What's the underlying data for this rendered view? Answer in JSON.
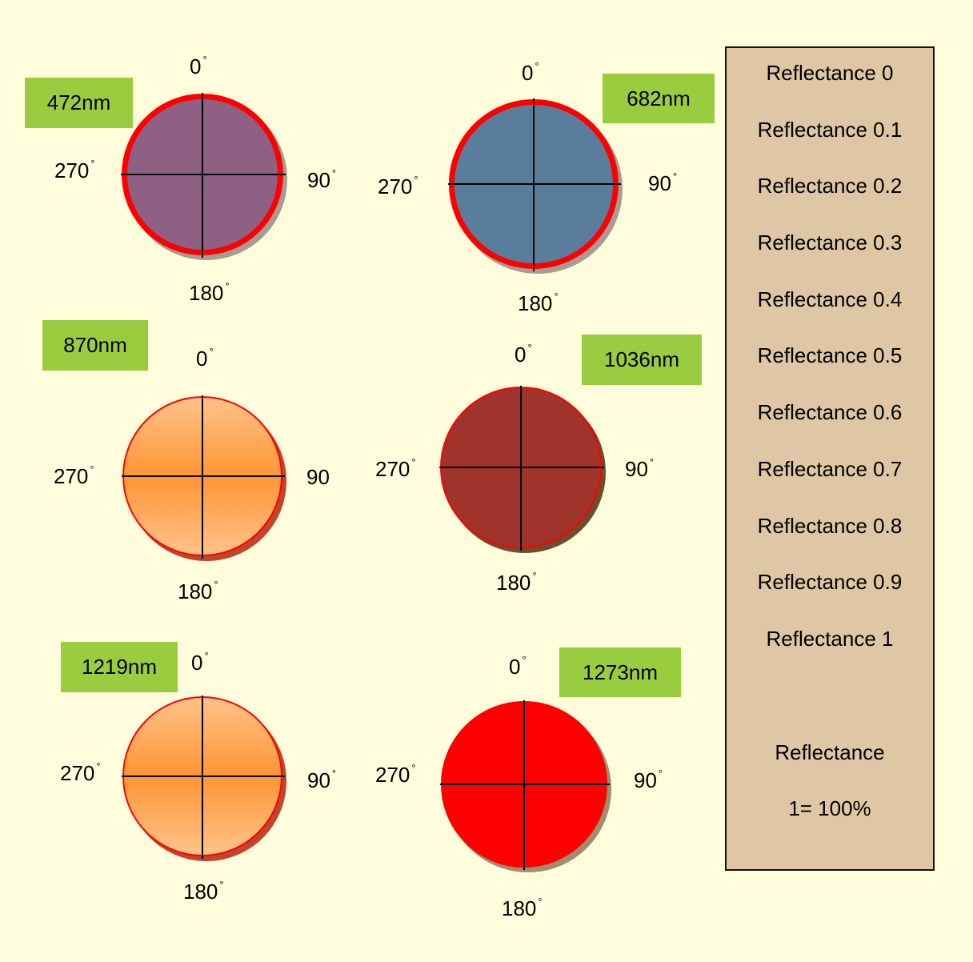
{
  "panels": [
    {
      "name": "472nm",
      "label": "472nm",
      "fill": "#8e6184",
      "rim": "#ff0000",
      "angles": {
        "top": "0",
        "right": "90",
        "bottom": "180",
        "left": "270"
      }
    },
    {
      "name": "682nm",
      "label": "682nm",
      "fill": "#5b7d9c",
      "rim": "#ff0000",
      "angles": {
        "top": "0",
        "right": "90",
        "bottom": "180",
        "left": "270"
      }
    },
    {
      "name": "870nm",
      "label": "870nm",
      "fill": "#fe9534",
      "rim": "#ff0000",
      "angles": {
        "top": "0",
        "right": "90",
        "bottom": "180",
        "left": "270"
      }
    },
    {
      "name": "1036nm",
      "label": "1036nm",
      "fill": "#a0332b",
      "rim": "#ff0000",
      "angles": {
        "top": "0",
        "right": "90",
        "bottom": "180",
        "left": "270"
      }
    },
    {
      "name": "1219nm",
      "label": "1219nm",
      "fill": "#fe9534",
      "rim": "#ff0000",
      "angles": {
        "top": "0",
        "right": "90",
        "bottom": "180",
        "left": "270"
      }
    },
    {
      "name": "1273nm",
      "label": "1273nm",
      "fill": "#ff0000",
      "rim": "#ff0000",
      "angles": {
        "top": "0",
        "right": "90",
        "bottom": "180",
        "left": "270"
      }
    }
  ],
  "legend": {
    "rows": [
      "Reflectance    0",
      "Reflectance  0.1",
      "Reflectance  0.2",
      "Reflectance  0.3",
      "Reflectance  0.4",
      "Reflectance  0.5",
      "Reflectance  0.6",
      "Reflectance  0.7",
      "Reflectance  0.8",
      "Reflectance  0.9",
      "Reflectance  1"
    ],
    "note_title": "Reflectance",
    "note_value": "1= 100%"
  },
  "colors": {
    "background": "#fffddb",
    "tag": "#9acc3f",
    "legend_bg": "#dfc7a6",
    "shadow": "#a69c94"
  }
}
